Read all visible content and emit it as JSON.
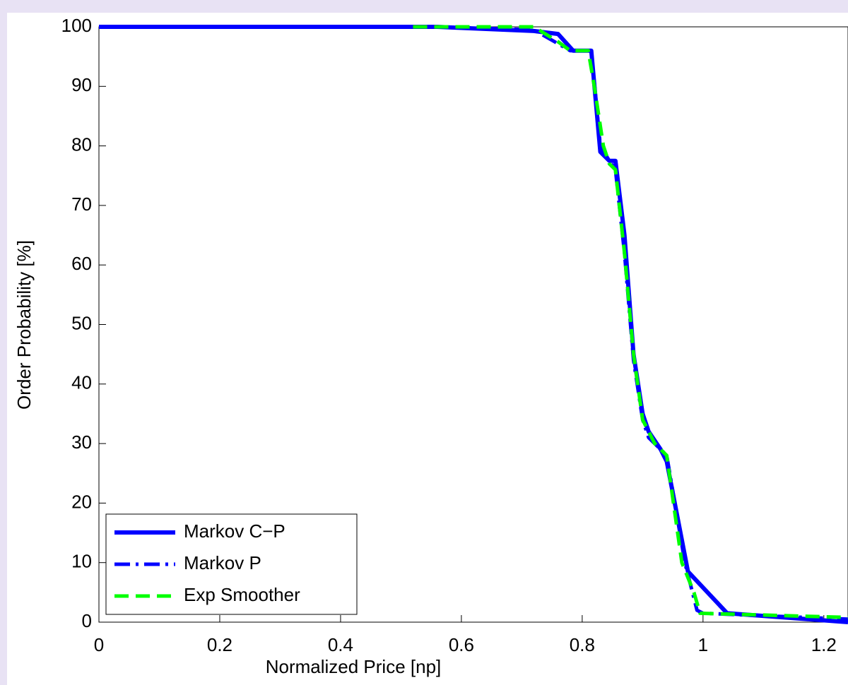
{
  "chart_data": {
    "type": "line",
    "x_label": "Normalized Price [np]",
    "y_label": "Order Probability [%]",
    "xlim": [
      0,
      1.24
    ],
    "ylim": [
      0,
      100
    ],
    "xticks": [
      0,
      0.2,
      0.4,
      0.6,
      0.8,
      1,
      1.2
    ],
    "yticks": [
      0,
      10,
      20,
      30,
      40,
      50,
      60,
      70,
      80,
      90,
      100
    ],
    "grid": false,
    "legend": "lower left",
    "series": [
      {
        "name": "Markov C−P",
        "color": "#0000ff",
        "dash": "solid",
        "x": [
          0,
          0.56,
          0.72,
          0.76,
          0.785,
          0.815,
          0.83,
          0.845,
          0.855,
          0.87,
          0.885,
          0.9,
          0.91,
          0.93,
          0.94,
          0.975,
          1.04,
          1.24
        ],
        "values": [
          100,
          100,
          99.3,
          98.8,
          96,
          96,
          79,
          77.5,
          77.5,
          65,
          45,
          35,
          32,
          29,
          27,
          8.5,
          1.5,
          0
        ]
      },
      {
        "name": "Markov P",
        "color": "#0000ff",
        "dash": "dashdot",
        "x": [
          0,
          0.56,
          0.72,
          0.78,
          0.815,
          0.83,
          0.845,
          0.855,
          0.87,
          0.885,
          0.9,
          0.91,
          0.93,
          0.94,
          0.97,
          0.99,
          1.0,
          1.24
        ],
        "values": [
          100,
          100,
          99.5,
          96,
          96,
          80,
          77.5,
          76,
          62,
          44,
          34,
          31,
          29,
          28,
          10,
          2,
          1.5,
          0.5
        ]
      },
      {
        "name": "Exp Smoother",
        "color": "#00ff00",
        "dash": "dashed",
        "x": [
          0.52,
          0.6,
          0.72,
          0.76,
          0.78,
          0.81,
          0.82,
          0.835,
          0.845,
          0.855,
          0.87,
          0.885,
          0.9,
          0.92,
          0.94,
          0.965,
          0.985,
          0.995,
          1.24
        ],
        "values": [
          100,
          100,
          100,
          97.5,
          96,
          96,
          90,
          80,
          77,
          76,
          62,
          45,
          34,
          30,
          28,
          10,
          5,
          1.5,
          0.8
        ]
      }
    ]
  }
}
